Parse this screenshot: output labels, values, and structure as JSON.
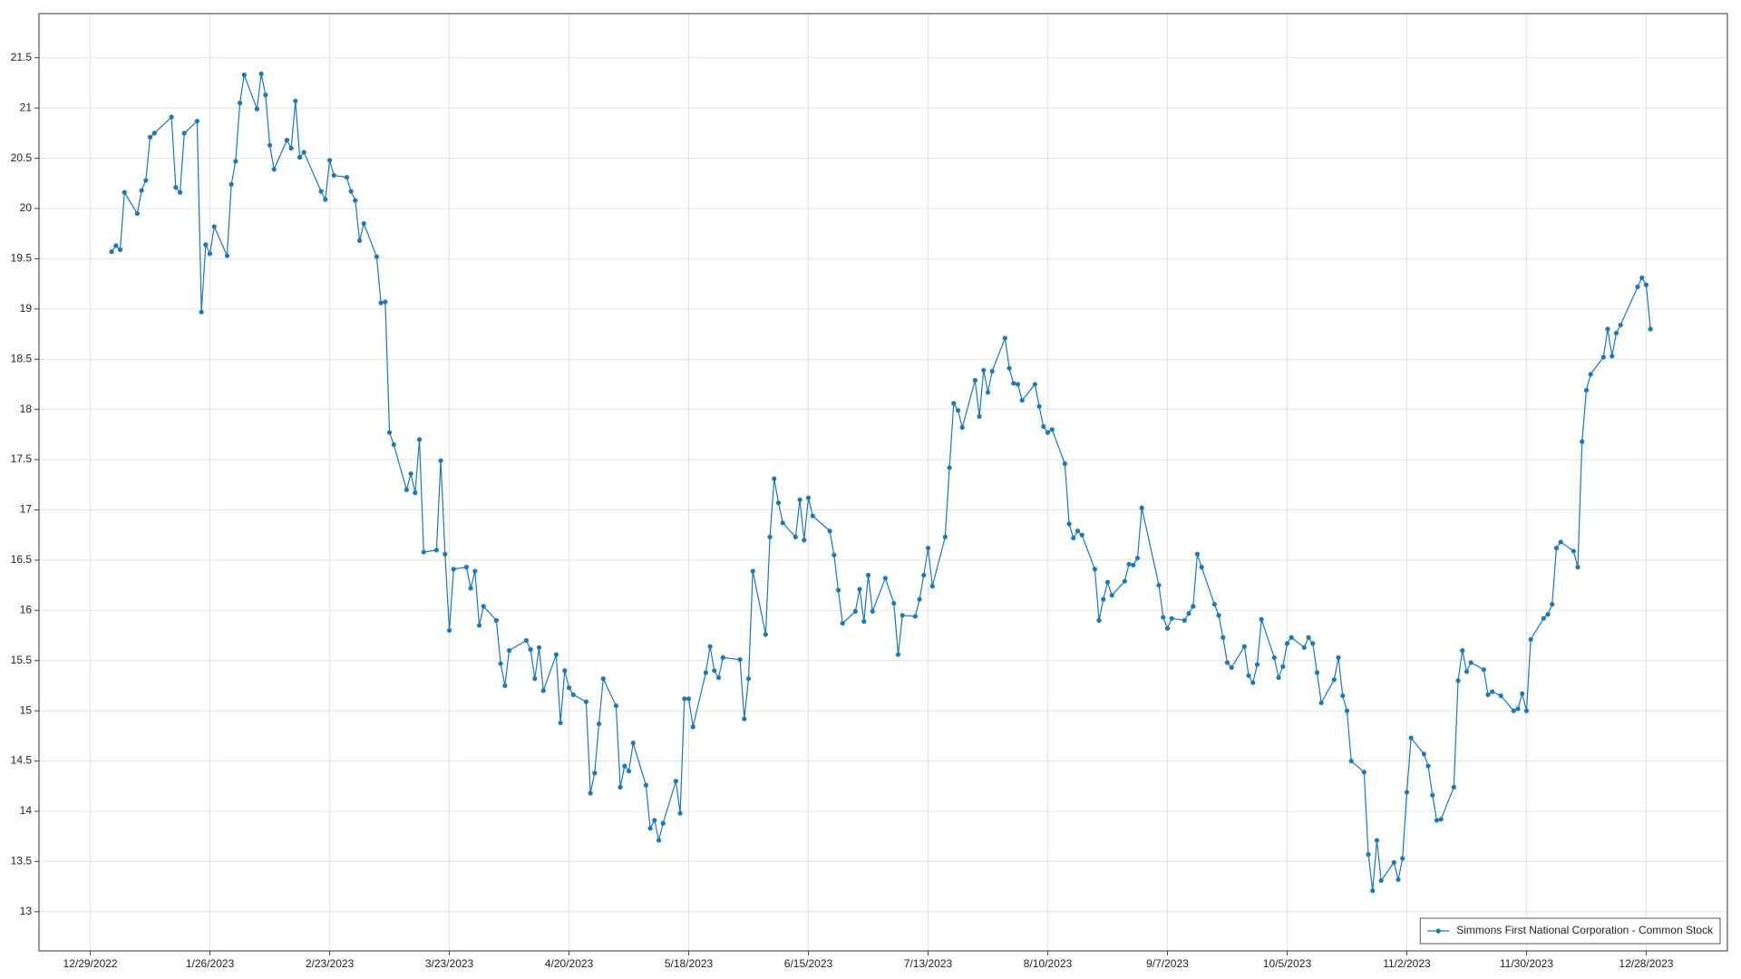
{
  "chart_data": {
    "type": "line",
    "x": [
      "1/3/2023",
      "1/4/2023",
      "1/5/2023",
      "1/6/2023",
      "1/9/2023",
      "1/10/2023",
      "1/11/2023",
      "1/12/2023",
      "1/13/2023",
      "1/17/2023",
      "1/18/2023",
      "1/19/2023",
      "1/20/2023",
      "1/23/2023",
      "1/24/2023",
      "1/25/2023",
      "1/26/2023",
      "1/27/2023",
      "1/30/2023",
      "1/31/2023",
      "2/1/2023",
      "2/2/2023",
      "2/3/2023",
      "2/6/2023",
      "2/7/2023",
      "2/8/2023",
      "2/9/2023",
      "2/10/2023",
      "2/13/2023",
      "2/14/2023",
      "2/15/2023",
      "2/16/2023",
      "2/17/2023",
      "2/21/2023",
      "2/22/2023",
      "2/23/2023",
      "2/24/2023",
      "2/27/2023",
      "2/28/2023",
      "3/1/2023",
      "3/2/2023",
      "3/3/2023",
      "3/6/2023",
      "3/7/2023",
      "3/8/2023",
      "3/9/2023",
      "3/10/2023",
      "3/13/2023",
      "3/14/2023",
      "3/15/2023",
      "3/16/2023",
      "3/17/2023",
      "3/20/2023",
      "3/21/2023",
      "3/22/2023",
      "3/23/2023",
      "3/24/2023",
      "3/27/2023",
      "3/28/2023",
      "3/29/2023",
      "3/30/2023",
      "3/31/2023",
      "4/3/2023",
      "4/4/2023",
      "4/5/2023",
      "4/6/2023",
      "4/10/2023",
      "4/11/2023",
      "4/12/2023",
      "4/13/2023",
      "4/14/2023",
      "4/17/2023",
      "4/18/2023",
      "4/19/2023",
      "4/20/2023",
      "4/21/2023",
      "4/24/2023",
      "4/25/2023",
      "4/26/2023",
      "4/27/2023",
      "4/28/2023",
      "5/1/2023",
      "5/2/2023",
      "5/3/2023",
      "5/4/2023",
      "5/5/2023",
      "5/8/2023",
      "5/9/2023",
      "5/10/2023",
      "5/11/2023",
      "5/12/2023",
      "5/15/2023",
      "5/16/2023",
      "5/17/2023",
      "5/18/2023",
      "5/19/2023",
      "5/22/2023",
      "5/23/2023",
      "5/24/2023",
      "5/25/2023",
      "5/26/2023",
      "5/30/2023",
      "5/31/2023",
      "6/1/2023",
      "6/2/2023",
      "6/5/2023",
      "6/6/2023",
      "6/7/2023",
      "6/8/2023",
      "6/9/2023",
      "6/12/2023",
      "6/13/2023",
      "6/14/2023",
      "6/15/2023",
      "6/16/2023",
      "6/20/2023",
      "6/21/2023",
      "6/22/2023",
      "6/23/2023",
      "6/26/2023",
      "6/27/2023",
      "6/28/2023",
      "6/29/2023",
      "6/30/2023",
      "7/3/2023",
      "7/5/2023",
      "7/6/2023",
      "7/7/2023",
      "7/10/2023",
      "7/11/2023",
      "7/12/2023",
      "7/13/2023",
      "7/14/2023",
      "7/17/2023",
      "7/18/2023",
      "7/19/2023",
      "7/20/2023",
      "7/21/2023",
      "7/24/2023",
      "7/25/2023",
      "7/26/2023",
      "7/27/2023",
      "7/28/2023",
      "7/31/2023",
      "8/1/2023",
      "8/2/2023",
      "8/3/2023",
      "8/4/2023",
      "8/7/2023",
      "8/8/2023",
      "8/9/2023",
      "8/10/2023",
      "8/11/2023",
      "8/14/2023",
      "8/15/2023",
      "8/16/2023",
      "8/17/2023",
      "8/18/2023",
      "8/21/2023",
      "8/22/2023",
      "8/23/2023",
      "8/24/2023",
      "8/25/2023",
      "8/28/2023",
      "8/29/2023",
      "8/30/2023",
      "8/31/2023",
      "9/1/2023",
      "9/5/2023",
      "9/6/2023",
      "9/7/2023",
      "9/8/2023",
      "9/11/2023",
      "9/12/2023",
      "9/13/2023",
      "9/14/2023",
      "9/15/2023",
      "9/18/2023",
      "9/19/2023",
      "9/20/2023",
      "9/21/2023",
      "9/22/2023",
      "9/25/2023",
      "9/26/2023",
      "9/27/2023",
      "9/28/2023",
      "9/29/2023",
      "10/2/2023",
      "10/3/2023",
      "10/4/2023",
      "10/5/2023",
      "10/6/2023",
      "10/9/2023",
      "10/10/2023",
      "10/11/2023",
      "10/12/2023",
      "10/13/2023",
      "10/16/2023",
      "10/17/2023",
      "10/18/2023",
      "10/19/2023",
      "10/20/2023",
      "10/23/2023",
      "10/24/2023",
      "10/25/2023",
      "10/26/2023",
      "10/27/2023",
      "10/30/2023",
      "10/31/2023",
      "11/1/2023",
      "11/2/2023",
      "11/3/2023",
      "11/6/2023",
      "11/7/2023",
      "11/8/2023",
      "11/9/2023",
      "11/10/2023",
      "11/13/2023",
      "11/14/2023",
      "11/15/2023",
      "11/16/2023",
      "11/17/2023",
      "11/20/2023",
      "11/21/2023",
      "11/22/2023",
      "11/24/2023",
      "11/27/2023",
      "11/28/2023",
      "11/29/2023",
      "11/30/2023",
      "12/1/2023",
      "12/4/2023",
      "12/5/2023",
      "12/6/2023",
      "12/7/2023",
      "12/8/2023",
      "12/11/2023",
      "12/12/2023",
      "12/13/2023",
      "12/14/2023",
      "12/15/2023",
      "12/18/2023",
      "12/19/2023",
      "12/20/2023",
      "12/21/2023",
      "12/22/2023",
      "12/26/2023",
      "12/27/2023",
      "12/28/2023",
      "12/29/2023"
    ],
    "series": [
      {
        "name": "Simmons First National Corporation - Common Stock",
        "color": "#1f77b4",
        "values": [
          19.57,
          19.63,
          19.59,
          20.16,
          19.95,
          20.18,
          20.28,
          20.71,
          20.75,
          20.91,
          20.21,
          20.16,
          20.75,
          20.87,
          18.97,
          19.64,
          19.55,
          19.82,
          19.53,
          20.24,
          20.47,
          21.05,
          21.33,
          20.99,
          21.34,
          21.13,
          20.63,
          20.39,
          20.68,
          20.6,
          21.07,
          20.51,
          20.56,
          20.17,
          20.09,
          20.48,
          20.33,
          20.31,
          20.17,
          20.08,
          19.68,
          19.85,
          19.52,
          19.06,
          19.07,
          17.77,
          17.65,
          17.2,
          17.36,
          17.17,
          17.7,
          16.58,
          16.6,
          17.49,
          16.56,
          15.8,
          16.41,
          16.43,
          16.22,
          16.39,
          15.85,
          16.04,
          15.9,
          15.47,
          15.25,
          15.6,
          15.7,
          15.61,
          15.32,
          15.63,
          15.2,
          15.56,
          14.88,
          15.4,
          15.23,
          15.16,
          15.09,
          14.18,
          14.38,
          14.87,
          15.32,
          15.05,
          14.24,
          14.45,
          14.4,
          14.68,
          14.26,
          13.83,
          13.91,
          13.71,
          13.88,
          14.3,
          13.98,
          15.12,
          15.12,
          14.84,
          15.38,
          15.64,
          15.4,
          15.33,
          15.53,
          15.51,
          14.92,
          15.32,
          16.39,
          15.76,
          16.73,
          17.31,
          17.07,
          16.87,
          16.73,
          17.1,
          16.7,
          17.12,
          16.94,
          16.79,
          16.55,
          16.2,
          15.87,
          15.99,
          16.21,
          15.89,
          16.35,
          15.99,
          16.32,
          16.07,
          15.56,
          15.95,
          15.94,
          16.11,
          16.35,
          16.62,
          16.24,
          16.73,
          17.42,
          18.06,
          17.99,
          17.82,
          18.29,
          17.93,
          18.39,
          18.17,
          18.38,
          18.71,
          18.41,
          18.26,
          18.25,
          18.09,
          18.25,
          18.03,
          17.83,
          17.77,
          17.8,
          17.46,
          16.86,
          16.72,
          16.79,
          16.75,
          16.41,
          15.9,
          16.11,
          16.28,
          16.15,
          16.29,
          16.46,
          16.45,
          16.52,
          17.02,
          16.25,
          15.93,
          15.82,
          15.92,
          15.9,
          15.97,
          16.04,
          16.56,
          16.43,
          16.06,
          15.95,
          15.73,
          15.48,
          15.43,
          15.64,
          15.35,
          15.28,
          15.46,
          15.91,
          15.53,
          15.33,
          15.44,
          15.67,
          15.73,
          15.63,
          15.73,
          15.67,
          15.38,
          15.08,
          15.31,
          15.53,
          15.15,
          15.0,
          14.5,
          14.39,
          13.57,
          13.21,
          13.71,
          13.31,
          13.49,
          13.32,
          13.53,
          14.19,
          14.73,
          14.57,
          14.45,
          14.16,
          13.91,
          13.92,
          14.24,
          15.3,
          15.6,
          15.39,
          15.48,
          15.41,
          15.16,
          15.19,
          15.15,
          15.0,
          15.02,
          15.17,
          15.0,
          15.71,
          15.92,
          15.96,
          16.06,
          16.62,
          16.68,
          16.59,
          16.43,
          17.68,
          18.19,
          18.35,
          18.52,
          18.8,
          18.53,
          18.76,
          18.84,
          19.22,
          19.31,
          19.24,
          18.8
        ]
      }
    ],
    "xlim": [
      "12/17/2022",
      "1/16/2024"
    ],
    "xticks": [
      "12/29/2022",
      "1/26/2023",
      "2/23/2023",
      "3/23/2023",
      "4/20/2023",
      "5/18/2023",
      "6/15/2023",
      "7/13/2023",
      "8/10/2023",
      "9/7/2023",
      "10/5/2023",
      "11/2/2023",
      "11/30/2023",
      "12/28/2023"
    ],
    "ylim": [
      12.61,
      21.94
    ],
    "yticks": [
      13,
      13.5,
      14,
      14.5,
      15,
      15.5,
      16,
      16.5,
      17,
      17.5,
      18,
      18.5,
      19,
      19.5,
      20,
      20.5,
      21,
      21.5
    ],
    "grid": true,
    "legend": "bottom-right"
  }
}
